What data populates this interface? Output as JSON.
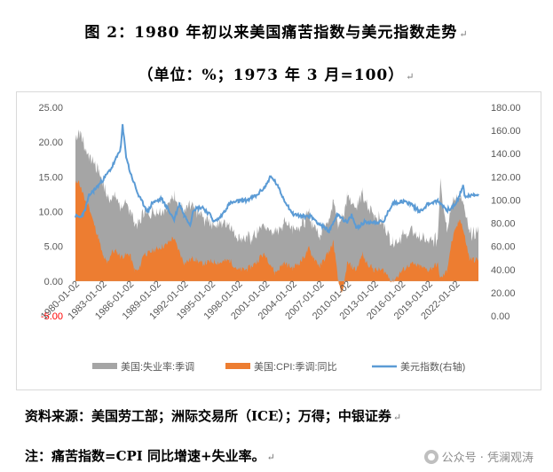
{
  "header": {
    "title": "图 2：1980 年初以来美国痛苦指数与美元指数走势",
    "subtitle": "（单位：%；1973 年 3 月=100）",
    "return_mark": "↵"
  },
  "chart_data": {
    "type": "area",
    "x_range": [
      "1980-01",
      "2024-06"
    ],
    "x_ticks": [
      "1980-01-02",
      "1983-01-02",
      "1986-01-02",
      "1989-01-02",
      "1992-01-02",
      "1995-01-02",
      "1998-01-02",
      "2001-01-02",
      "2004-01-02",
      "2007-01-02",
      "2010-01-02",
      "2013-01-02",
      "2016-01-02",
      "2019-01-02",
      "2022-01-02"
    ],
    "y_left_ticks": [
      "-5.00",
      "0.00",
      "5.00",
      "10.00",
      "15.00",
      "20.00",
      "25.00"
    ],
    "y_left_range": [
      -5,
      25
    ],
    "y_right_ticks": [
      "0.00",
      "20.00",
      "40.00",
      "60.00",
      "80.00",
      "100.00",
      "120.00",
      "140.00",
      "160.00",
      "180.00"
    ],
    "y_right_range": [
      0,
      180
    ],
    "grid": false,
    "legend_position": "bottom",
    "series": [
      {
        "name": "美国:失业率:季调",
        "type": "area",
        "axis": "left",
        "color": "#a5a5a5",
        "points": [
          [
            1980.0,
            6.3
          ],
          [
            1980.5,
            7.6
          ],
          [
            1981.0,
            7.5
          ],
          [
            1981.5,
            7.2
          ],
          [
            1982.0,
            8.6
          ],
          [
            1982.5,
            9.8
          ],
          [
            1983.0,
            10.4
          ],
          [
            1983.5,
            9.4
          ],
          [
            1984.0,
            8.0
          ],
          [
            1985.0,
            7.3
          ],
          [
            1986.0,
            6.7
          ],
          [
            1987.0,
            6.6
          ],
          [
            1988.0,
            5.7
          ],
          [
            1989.0,
            5.4
          ],
          [
            1990.0,
            5.4
          ],
          [
            1990.5,
            5.5
          ],
          [
            1991.0,
            6.4
          ],
          [
            1992.0,
            7.3
          ],
          [
            1992.5,
            7.7
          ],
          [
            1993.0,
            7.3
          ],
          [
            1994.0,
            6.6
          ],
          [
            1995.0,
            5.6
          ],
          [
            1996.0,
            5.6
          ],
          [
            1997.0,
            5.3
          ],
          [
            1998.0,
            4.6
          ],
          [
            1999.0,
            4.3
          ],
          [
            2000.0,
            4.0
          ],
          [
            2001.0,
            4.2
          ],
          [
            2002.0,
            5.7
          ],
          [
            2003.0,
            5.8
          ],
          [
            2003.5,
            6.2
          ],
          [
            2004.0,
            5.7
          ],
          [
            2005.0,
            5.3
          ],
          [
            2006.0,
            4.7
          ],
          [
            2007.0,
            4.6
          ],
          [
            2008.0,
            5.0
          ],
          [
            2008.5,
            5.8
          ],
          [
            2009.0,
            7.8
          ],
          [
            2009.5,
            9.5
          ],
          [
            2010.0,
            9.8
          ],
          [
            2011.0,
            9.1
          ],
          [
            2012.0,
            8.3
          ],
          [
            2013.0,
            8.0
          ],
          [
            2014.0,
            6.6
          ],
          [
            2015.0,
            5.7
          ],
          [
            2016.0,
            4.9
          ],
          [
            2017.0,
            4.7
          ],
          [
            2018.0,
            4.1
          ],
          [
            2019.0,
            4.0
          ],
          [
            2020.0,
            3.5
          ],
          [
            2020.3,
            14.7
          ],
          [
            2020.6,
            10.2
          ],
          [
            2021.0,
            6.4
          ],
          [
            2021.5,
            5.4
          ],
          [
            2022.0,
            4.0
          ],
          [
            2023.0,
            3.5
          ],
          [
            2024.0,
            3.7
          ],
          [
            2024.5,
            4.1
          ]
        ]
      },
      {
        "name": "美国:CPI:季调:同比",
        "type": "area",
        "axis": "left",
        "color": "#ed7d31",
        "points": [
          [
            1980.0,
            13.9
          ],
          [
            1980.3,
            14.6
          ],
          [
            1980.8,
            12.6
          ],
          [
            1981.0,
            11.8
          ],
          [
            1981.5,
            10.8
          ],
          [
            1982.0,
            8.4
          ],
          [
            1982.5,
            6.4
          ],
          [
            1983.0,
            3.7
          ],
          [
            1983.5,
            2.5
          ],
          [
            1984.0,
            4.2
          ],
          [
            1984.5,
            4.3
          ],
          [
            1985.0,
            3.5
          ],
          [
            1986.0,
            3.9
          ],
          [
            1986.5,
            1.6
          ],
          [
            1987.0,
            1.5
          ],
          [
            1987.5,
            3.9
          ],
          [
            1988.0,
            4.0
          ],
          [
            1989.0,
            4.7
          ],
          [
            1990.0,
            5.2
          ],
          [
            1990.8,
            6.3
          ],
          [
            1991.0,
            5.7
          ],
          [
            1992.0,
            2.6
          ],
          [
            1993.0,
            3.3
          ],
          [
            1994.0,
            2.5
          ],
          [
            1995.0,
            2.8
          ],
          [
            1996.0,
            2.7
          ],
          [
            1997.0,
            3.0
          ],
          [
            1998.0,
            1.6
          ],
          [
            1999.0,
            1.7
          ],
          [
            2000.0,
            2.7
          ],
          [
            2000.5,
            3.7
          ],
          [
            2001.0,
            3.7
          ],
          [
            2001.9,
            1.6
          ],
          [
            2002.0,
            1.1
          ],
          [
            2003.0,
            2.6
          ],
          [
            2004.0,
            1.9
          ],
          [
            2005.0,
            3.0
          ],
          [
            2005.8,
            4.7
          ],
          [
            2006.0,
            4.0
          ],
          [
            2007.0,
            2.1
          ],
          [
            2008.0,
            4.3
          ],
          [
            2008.5,
            5.6
          ],
          [
            2009.0,
            0.0
          ],
          [
            2009.5,
            -2.0
          ],
          [
            2010.0,
            2.6
          ],
          [
            2011.0,
            1.6
          ],
          [
            2011.7,
            3.9
          ],
          [
            2012.0,
            2.9
          ],
          [
            2013.0,
            1.6
          ],
          [
            2014.0,
            1.6
          ],
          [
            2015.0,
            -0.1
          ],
          [
            2016.0,
            1.4
          ],
          [
            2017.0,
            2.5
          ],
          [
            2018.0,
            2.1
          ],
          [
            2019.0,
            1.6
          ],
          [
            2020.0,
            2.5
          ],
          [
            2020.3,
            0.3
          ],
          [
            2021.0,
            1.4
          ],
          [
            2021.5,
            5.4
          ],
          [
            2022.0,
            7.5
          ],
          [
            2022.5,
            9.0
          ],
          [
            2023.0,
            6.4
          ],
          [
            2023.5,
            3.2
          ],
          [
            2024.0,
            3.1
          ],
          [
            2024.5,
            3.0
          ]
        ]
      },
      {
        "name": "美元指数(右轴)",
        "type": "line",
        "axis": "right",
        "color": "#5b9bd5",
        "points": [
          [
            1980.0,
            86
          ],
          [
            1980.5,
            85
          ],
          [
            1981.0,
            90
          ],
          [
            1981.5,
            104
          ],
          [
            1982.0,
            108
          ],
          [
            1983.0,
            117
          ],
          [
            1984.0,
            128
          ],
          [
            1984.5,
            136
          ],
          [
            1985.0,
            145
          ],
          [
            1985.2,
            164
          ],
          [
            1985.6,
            138
          ],
          [
            1986.0,
            125
          ],
          [
            1987.0,
            103
          ],
          [
            1988.0,
            90
          ],
          [
            1988.5,
            98
          ],
          [
            1989.0,
            99
          ],
          [
            1989.5,
            101
          ],
          [
            1990.0,
            95
          ],
          [
            1990.9,
            83
          ],
          [
            1991.0,
            86
          ],
          [
            1991.5,
            97
          ],
          [
            1992.0,
            87
          ],
          [
            1992.7,
            79
          ],
          [
            1993.0,
            92
          ],
          [
            1994.0,
            94
          ],
          [
            1995.0,
            86
          ],
          [
            1995.3,
            81
          ],
          [
            1996.0,
            85
          ],
          [
            1997.0,
            97
          ],
          [
            1998.0,
            99
          ],
          [
            1999.0,
            100
          ],
          [
            2000.0,
            104
          ],
          [
            2001.0,
            112
          ],
          [
            2001.5,
            120
          ],
          [
            2002.0,
            117
          ],
          [
            2003.0,
            101
          ],
          [
            2004.0,
            88
          ],
          [
            2005.0,
            86
          ],
          [
            2006.0,
            86
          ],
          [
            2007.0,
            79
          ],
          [
            2008.0,
            73
          ],
          [
            2008.8,
            86
          ],
          [
            2009.0,
            88
          ],
          [
            2010.0,
            80
          ],
          [
            2010.5,
            87
          ],
          [
            2011.0,
            76
          ],
          [
            2012.0,
            81
          ],
          [
            2013.0,
            81
          ],
          [
            2014.0,
            81
          ],
          [
            2015.0,
            97
          ],
          [
            2016.0,
            99
          ],
          [
            2017.0,
            97
          ],
          [
            2018.0,
            90
          ],
          [
            2019.0,
            97
          ],
          [
            2020.0,
            99
          ],
          [
            2020.5,
            96
          ],
          [
            2021.0,
            91
          ],
          [
            2022.0,
            96
          ],
          [
            2022.8,
            112
          ],
          [
            2023.0,
            103
          ],
          [
            2024.0,
            104
          ],
          [
            2024.5,
            105
          ]
        ]
      }
    ]
  },
  "footer": {
    "source": "资料来源：美国劳工部；洲际交易所（ICE）；万得；中银证券",
    "note": "注：痛苦指数=CPI 同比增速+失业率。",
    "watermark": "公众号 · 凭澜观涛"
  }
}
